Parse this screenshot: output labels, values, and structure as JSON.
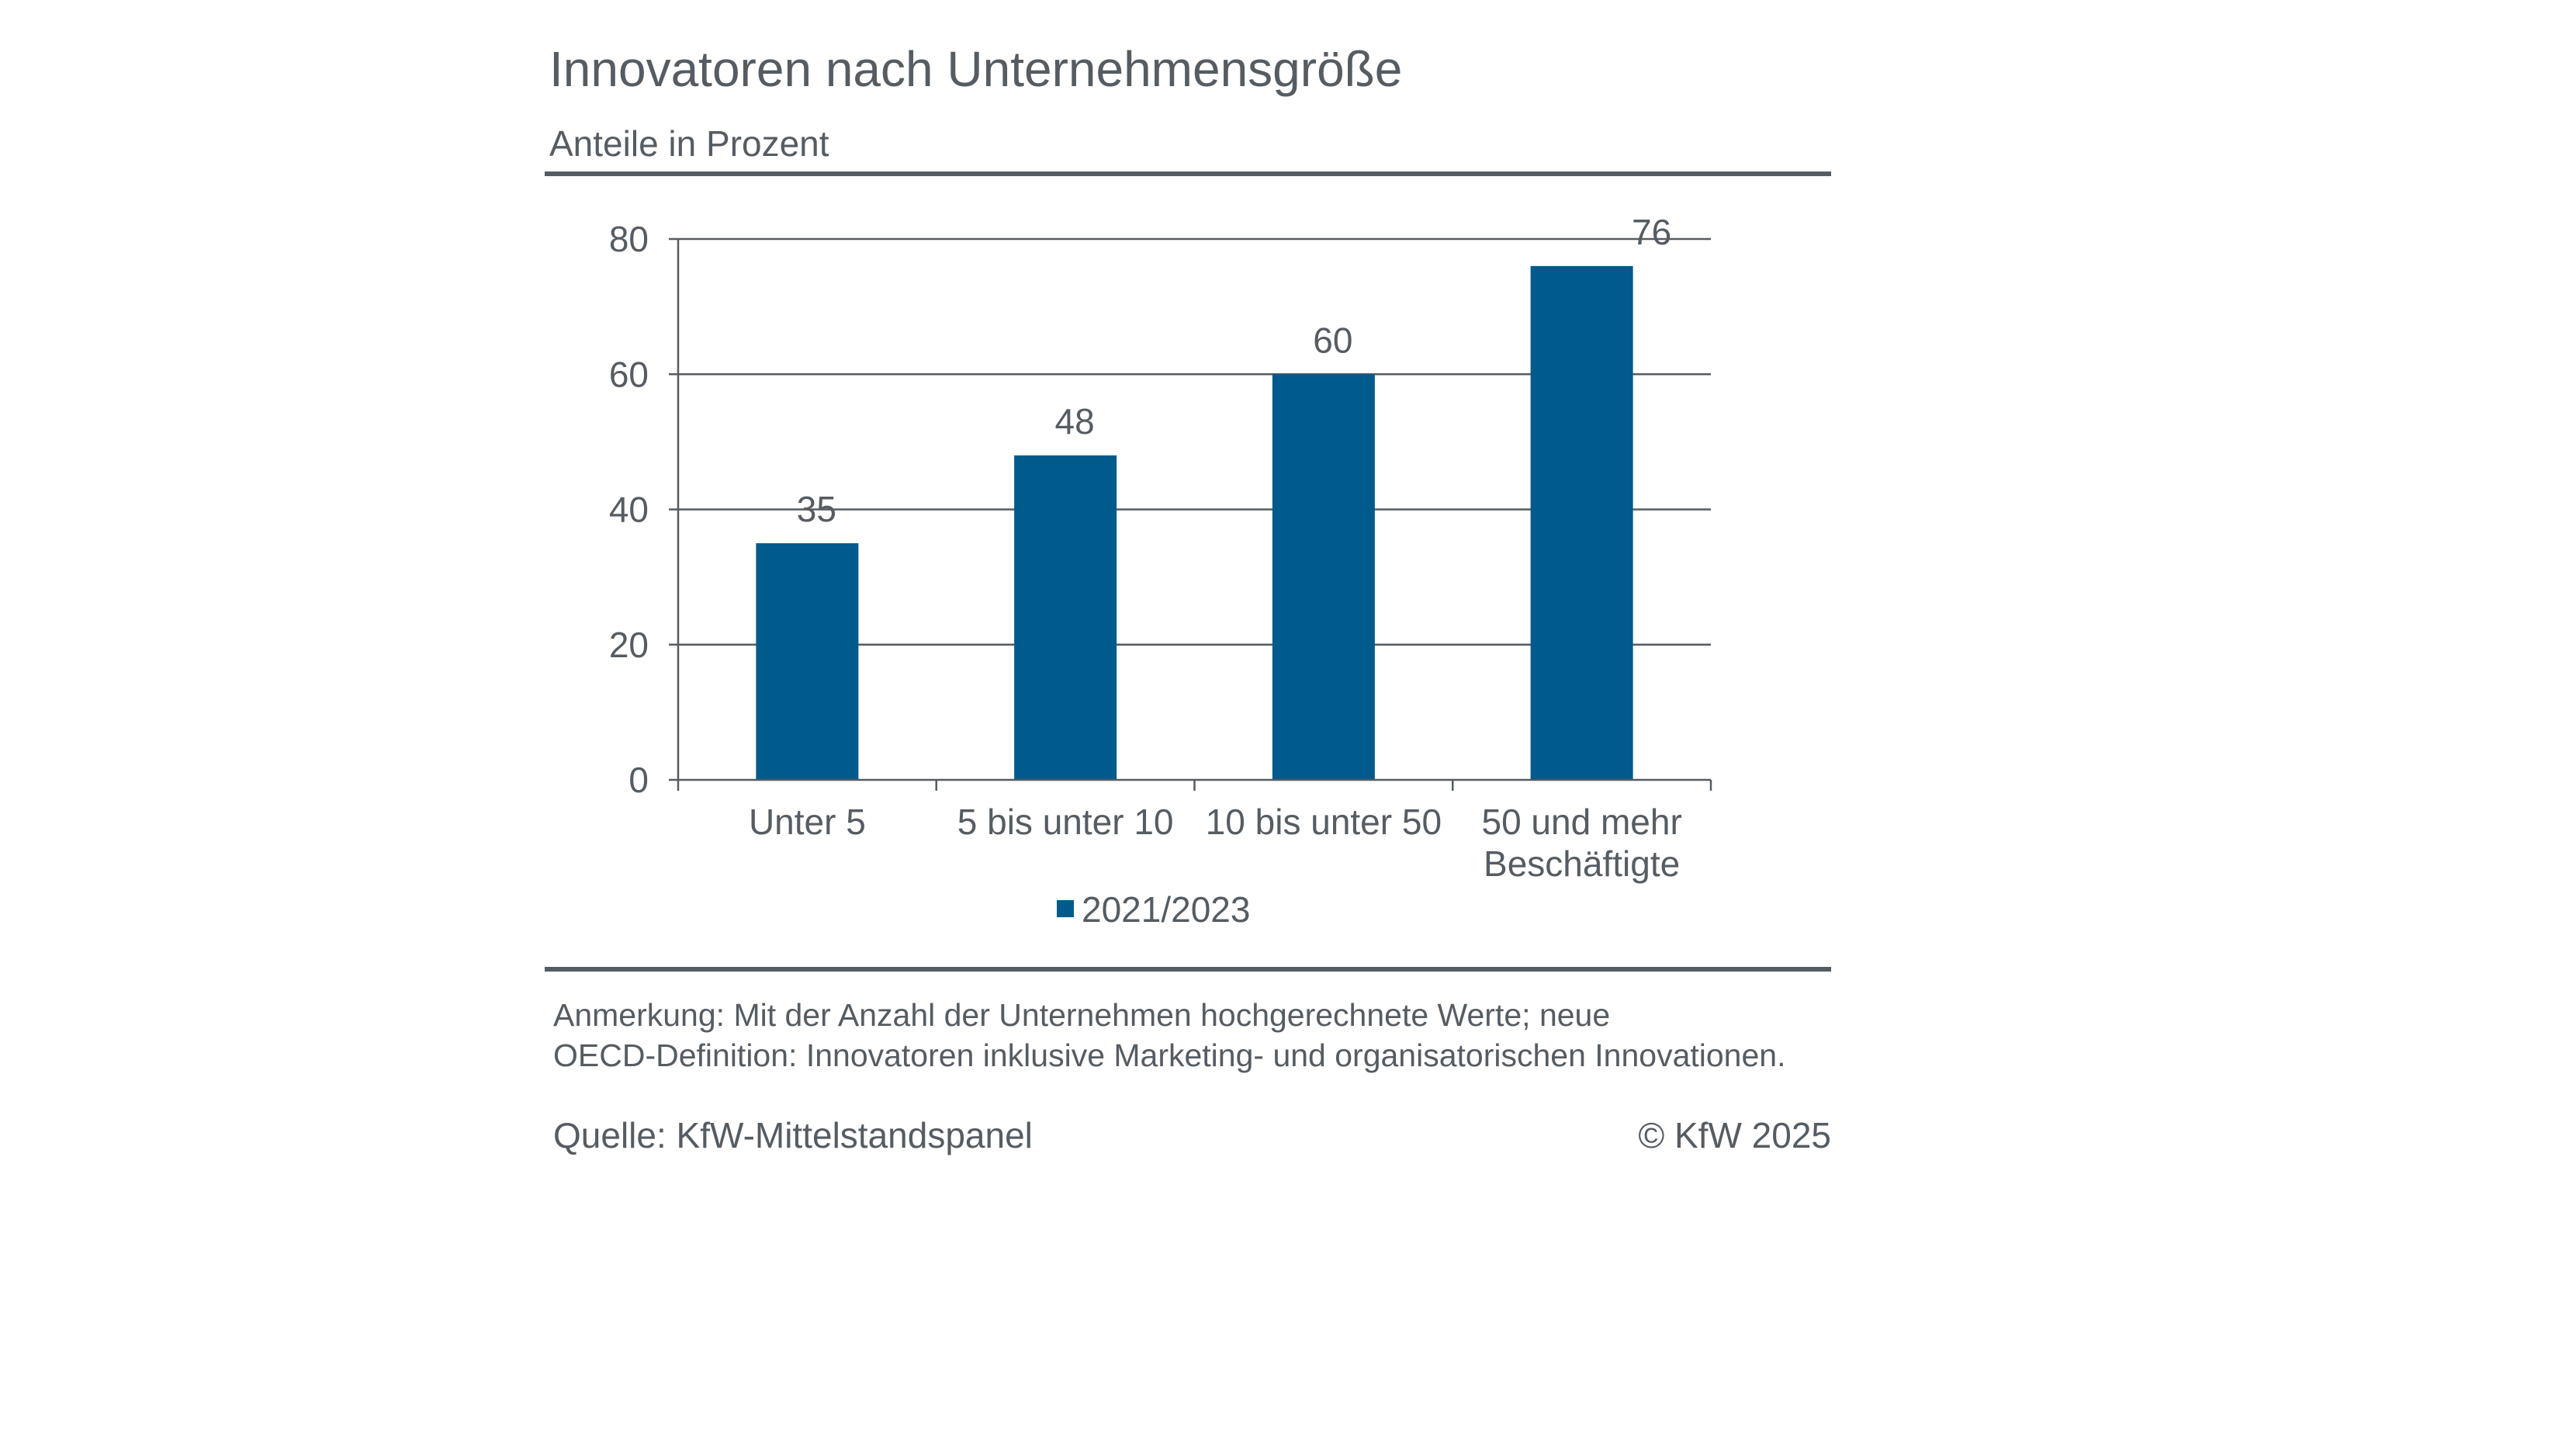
{
  "header": {
    "title": "Innovatoren nach Unternehmensgröße",
    "subtitle": "Anteile in Prozent"
  },
  "footer": {
    "note_line1": "Anmerkung: Mit der Anzahl der Unternehmen hochgerechnete Werte; neue",
    "note_line2": "OECD-Definition: Innovatoren inklusive Marketing- und organisatorischen Innovationen.",
    "source": "Quelle: KfW-Mittelstandspanel",
    "copyright": "© KfW 2025"
  },
  "colors": {
    "bar": "#005a8c",
    "text": "#555c62",
    "grid": "#555c62"
  },
  "chart_data": {
    "type": "bar",
    "categories": [
      [
        "Unter 5"
      ],
      [
        "5 bis unter 10"
      ],
      [
        "10 bis unter 50"
      ],
      [
        "50 und mehr",
        "Beschäftigte"
      ]
    ],
    "series": [
      {
        "name": "2021/2023",
        "values": [
          35,
          48,
          60,
          76
        ]
      }
    ],
    "data_labels": [
      "35",
      "48",
      "60",
      "76"
    ],
    "yticks": [
      "0",
      "20",
      "40",
      "60",
      "80"
    ],
    "ylim": [
      0,
      80
    ],
    "grid": true,
    "legend": "bottom"
  }
}
